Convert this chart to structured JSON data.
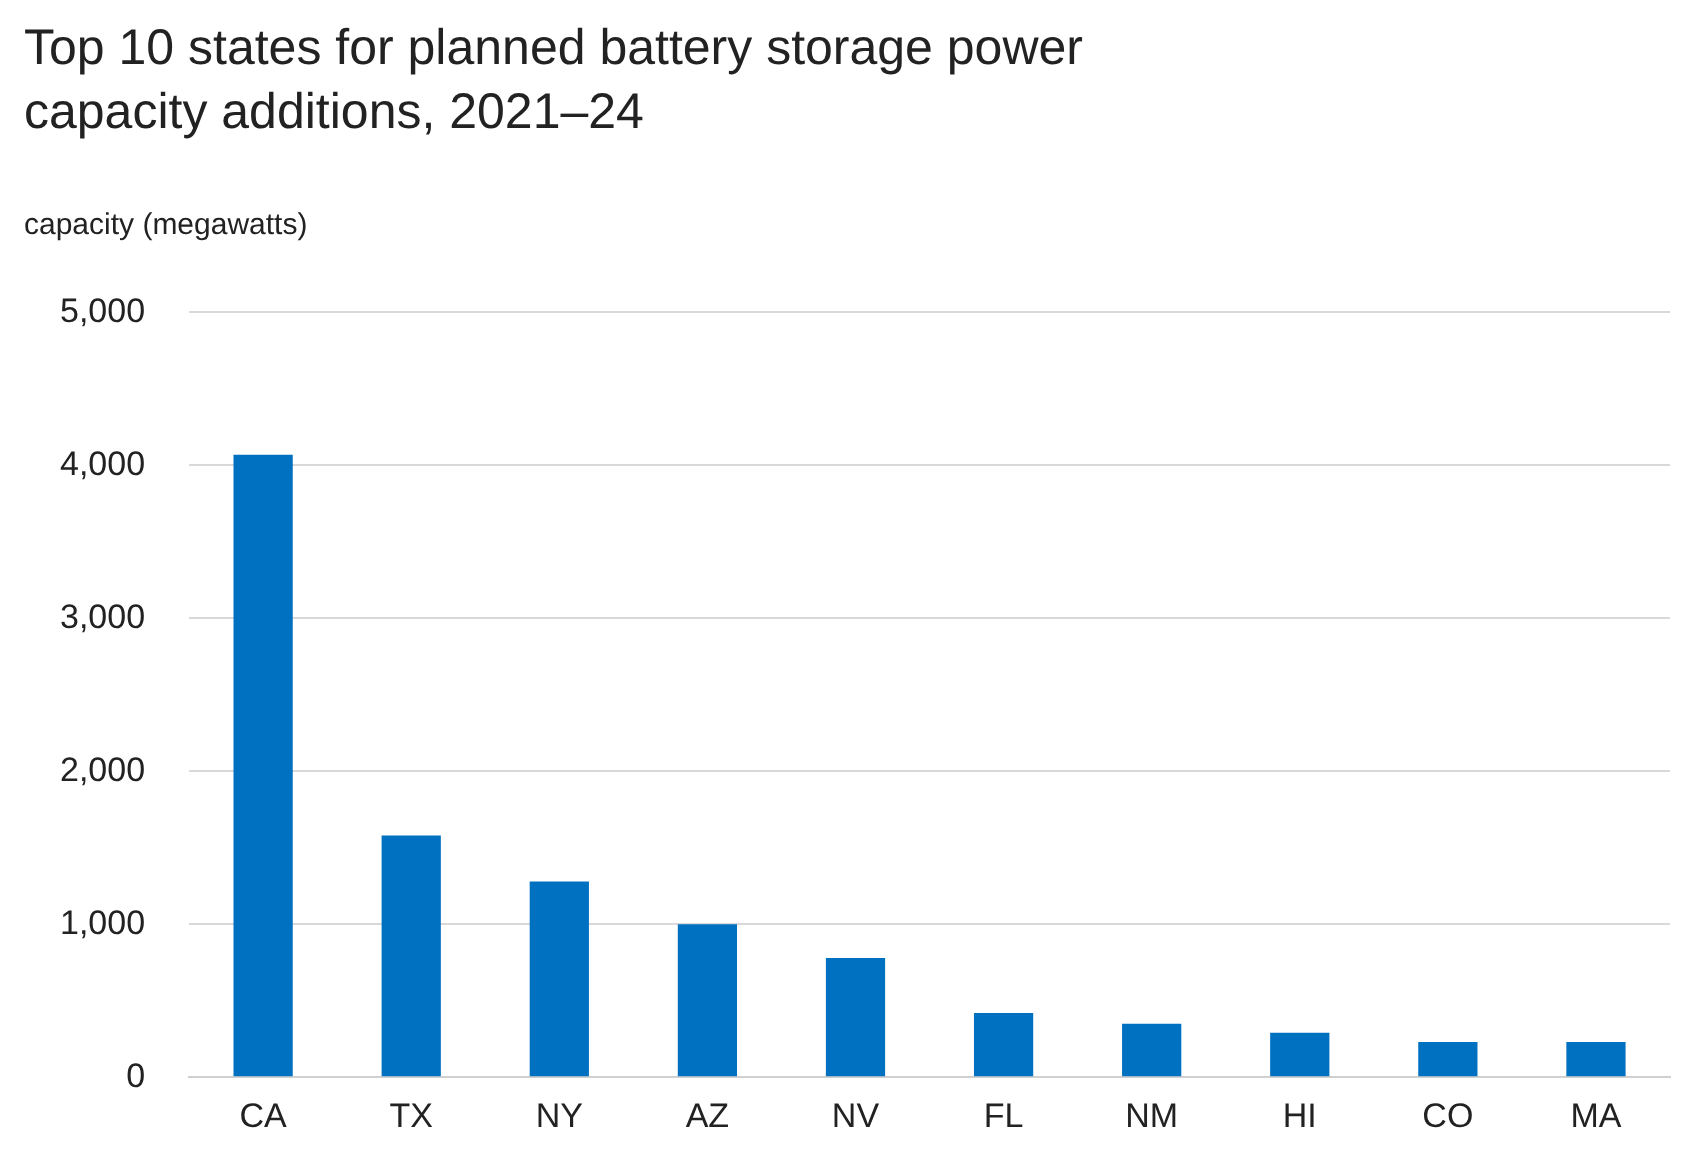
{
  "chart_data": {
    "type": "bar",
    "title": "Top 10 states for planned battery storage power capacity additions, 2021–24",
    "ylabel": "capacity (megawatts)",
    "categories": [
      "CA",
      "TX",
      "NY",
      "AZ",
      "NV",
      "FL",
      "NM",
      "HI",
      "CO",
      "MA"
    ],
    "values": [
      4070,
      1580,
      1280,
      1000,
      780,
      420,
      350,
      290,
      230,
      230
    ],
    "color": "#0070c0",
    "ylim": [
      0,
      5000
    ],
    "yticks": [
      0,
      {
        "value": 1000,
        "label": "1,000"
      },
      {
        "value": 2000,
        "label": "2,000"
      },
      {
        "value": 3000,
        "label": "3,000"
      },
      {
        "value": 4000,
        "label": "4,000"
      },
      {
        "value": 5000,
        "label": "5,000"
      }
    ],
    "grid": "y"
  }
}
